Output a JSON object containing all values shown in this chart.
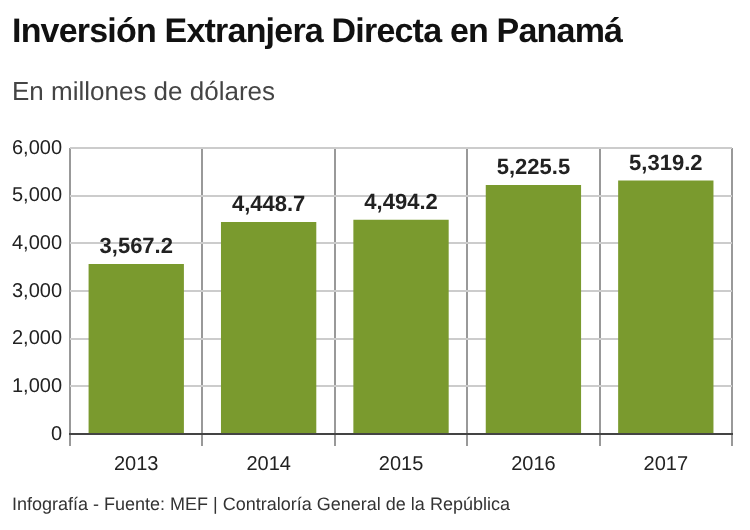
{
  "chart_data": {
    "type": "bar",
    "title": "Inversión Extranjera Directa en Panamá",
    "subtitle": "En millones de dólares",
    "categories": [
      "2013",
      "2014",
      "2015",
      "2016",
      "2017"
    ],
    "values": [
      3567.2,
      4448.7,
      4494.2,
      5225.5,
      5319.2
    ],
    "value_labels": [
      "3,567.2",
      "4,448.7",
      "4,494.2",
      "5,225.5",
      "5,319.2"
    ],
    "color": "#7a9a2e",
    "ylim": [
      0,
      6000
    ],
    "yticks": [
      {
        "value": 0,
        "label": "0"
      },
      {
        "value": 1000,
        "label": "1,000"
      },
      {
        "value": 2000,
        "label": "2,000"
      },
      {
        "value": 3000,
        "label": "3,000"
      },
      {
        "value": 4000,
        "label": "4,000"
      },
      {
        "value": 5000,
        "label": "5,000"
      },
      {
        "value": 6000,
        "label": "6,000"
      }
    ],
    "grid": true,
    "annotations": [
      "Infografía - Fuente: MEF | Contraloría General de la República"
    ]
  }
}
